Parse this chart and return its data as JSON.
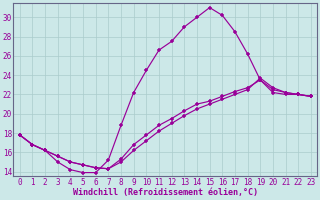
{
  "xlabel": "Windchill (Refroidissement éolien,°C)",
  "bg_color": "#cce8e8",
  "line_color": "#990099",
  "grid_color": "#aacccc",
  "xlim_min": -0.5,
  "xlim_max": 23.5,
  "ylim_min": 13.5,
  "ylim_max": 31.5,
  "yticks": [
    14,
    16,
    18,
    20,
    22,
    24,
    26,
    28,
    30
  ],
  "xticks": [
    0,
    1,
    2,
    3,
    4,
    5,
    6,
    7,
    8,
    9,
    10,
    11,
    12,
    13,
    14,
    15,
    16,
    17,
    18,
    19,
    20,
    21,
    22,
    23
  ],
  "line1_x": [
    0,
    1,
    2,
    3,
    4,
    5,
    6,
    7,
    8,
    9,
    10,
    11,
    12,
    13,
    14,
    15,
    16,
    17,
    18,
    19,
    20,
    21,
    22,
    23
  ],
  "line1_y": [
    17.8,
    16.8,
    16.2,
    15.0,
    14.2,
    13.9,
    13.9,
    15.2,
    18.8,
    22.2,
    24.5,
    26.6,
    27.5,
    29.0,
    30.0,
    31.0,
    30.2,
    28.5,
    26.2,
    23.5,
    22.2,
    22.0,
    22.0,
    21.8
  ],
  "line2_x": [
    0,
    1,
    2,
    3,
    4,
    5,
    6,
    7,
    8,
    9,
    10,
    11,
    12,
    13,
    14,
    15,
    16,
    17,
    18,
    19,
    20,
    21,
    22,
    23
  ],
  "line2_y": [
    17.8,
    16.8,
    16.2,
    15.6,
    15.0,
    14.7,
    14.4,
    14.3,
    15.0,
    16.2,
    17.2,
    18.2,
    19.0,
    19.8,
    20.5,
    21.0,
    21.5,
    22.0,
    22.5,
    23.7,
    22.7,
    22.2,
    22.0,
    21.8
  ],
  "line3_x": [
    0,
    1,
    2,
    3,
    4,
    5,
    6,
    7,
    8,
    9,
    10,
    11,
    12,
    13,
    14,
    15,
    16,
    17,
    18,
    19,
    20,
    21,
    22,
    23
  ],
  "line3_y": [
    17.8,
    16.8,
    16.2,
    15.6,
    15.0,
    14.7,
    14.4,
    14.3,
    15.3,
    16.8,
    17.8,
    18.8,
    19.5,
    20.3,
    21.0,
    21.3,
    21.8,
    22.3,
    22.7,
    23.5,
    22.5,
    22.2,
    22.0,
    21.8
  ],
  "spine_color": "#666688",
  "tick_fontsize": 5.5,
  "xlabel_fontsize": 6.0
}
